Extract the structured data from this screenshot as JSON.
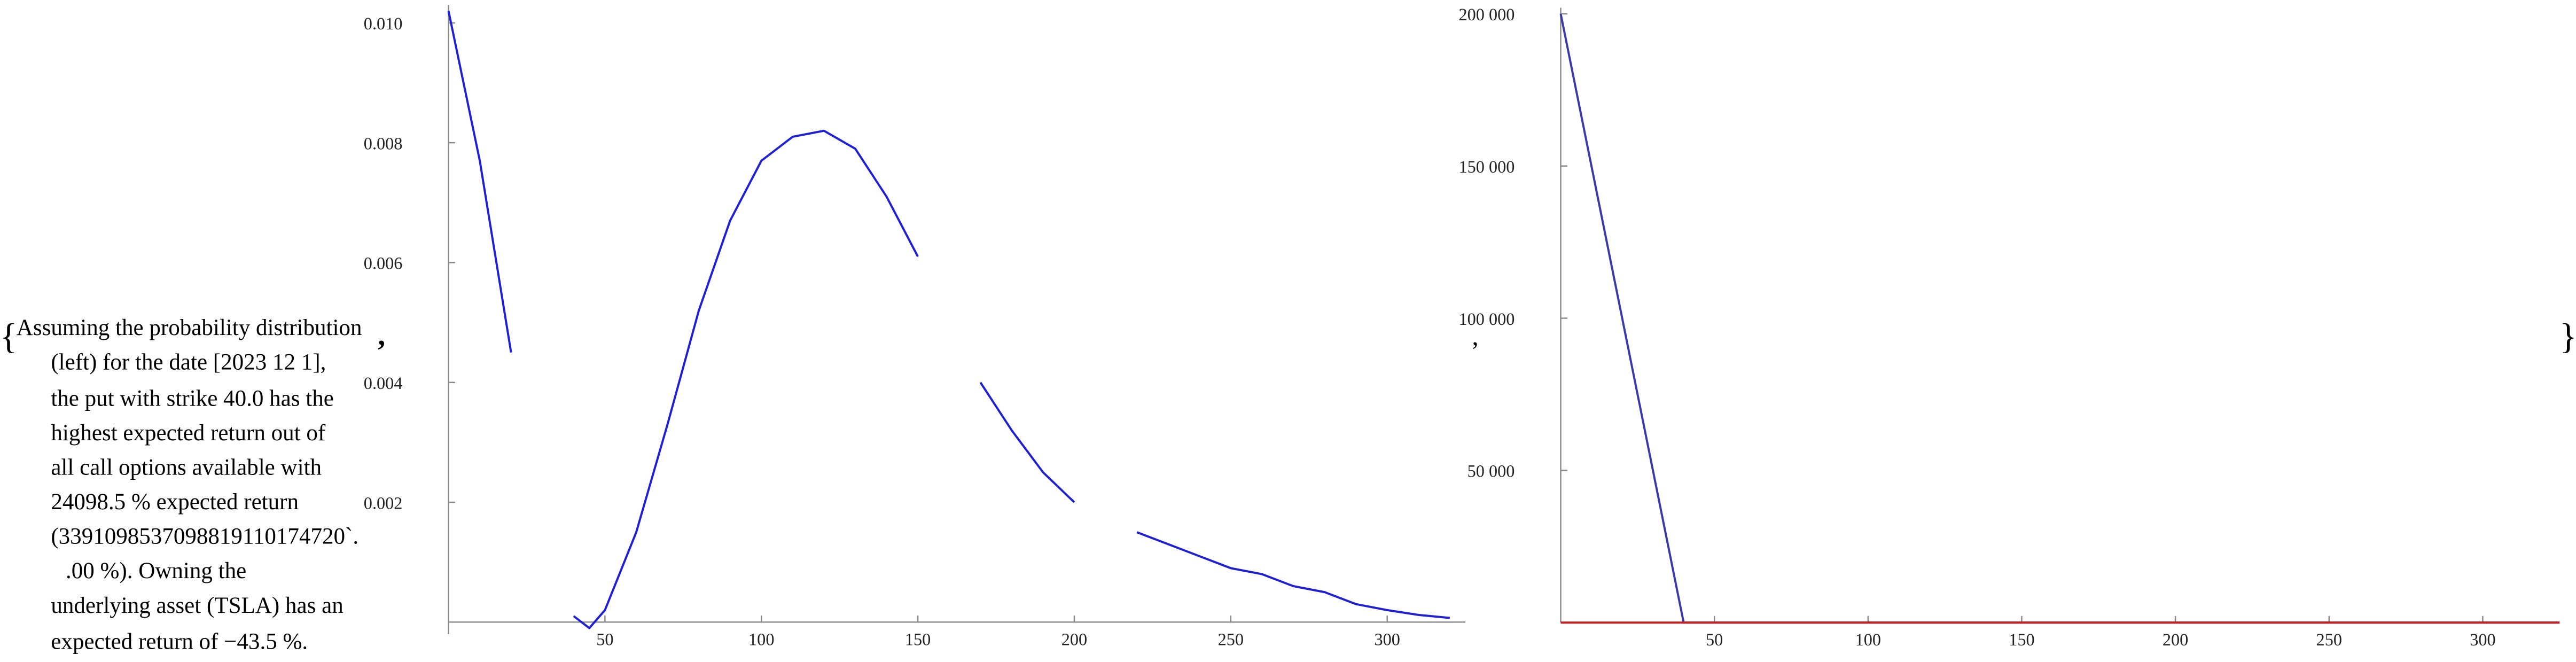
{
  "brackets": {
    "open": "{",
    "close": "}",
    "comma": ",",
    "separator": ","
  },
  "text": [
    "Assuming the probability distribution",
    "(left) for the date [2023 12 1],",
    "the put with strike 40.0 has the",
    "highest expected return out of",
    "all call options available with",
    "24098.5 % expected return",
    "(3391098537098819110174720`.",
    ".00 %). Owning the",
    "underlying asset (TSLA) has an",
    "expected return of −43.5 %."
  ],
  "chart_data": [
    {
      "type": "line",
      "x": [
        0,
        10,
        20,
        30,
        40,
        45,
        50,
        60,
        70,
        80,
        90,
        100,
        110,
        120,
        130,
        140,
        150,
        160,
        170,
        180,
        190,
        200,
        210,
        220,
        230,
        240,
        250,
        260,
        270,
        280,
        290,
        300,
        310,
        320
      ],
      "series": [
        {
          "color": "#1f1fd6",
          "values": [
            0.0102,
            0.0077,
            0.0045,
            null,
            0.0001,
            -0.0001,
            0.0002,
            0.0015,
            0.0033,
            0.0052,
            0.0067,
            0.0077,
            0.0081,
            0.0082,
            0.0079,
            0.0071,
            0.0061,
            null,
            0.004,
            0.0032,
            0.0025,
            0.002,
            null,
            0.0015,
            0.0013,
            0.0011,
            0.0009,
            0.0008,
            0.0006,
            0.0005,
            0.0003,
            0.0002,
            0.00012,
            7e-05
          ]
        }
      ],
      "xlim": [
        0,
        325
      ],
      "ylim": [
        -0.0002,
        0.0103
      ],
      "xticks": [
        50,
        100,
        150,
        200,
        250,
        300
      ],
      "yticks": [
        0.002,
        0.004,
        0.006,
        0.008,
        {
          "value": 0.01,
          "label": "0.010"
        }
      ]
    },
    {
      "type": "line",
      "x": [
        0,
        40,
        325
      ],
      "series": [
        {
          "color": "#3a3aa8",
          "values": [
            200000,
            0,
            0
          ]
        },
        {
          "color": "#c82020",
          "values": [
            0,
            0,
            0
          ]
        }
      ],
      "xlim": [
        0,
        325
      ],
      "ylim": [
        0,
        202000
      ],
      "xticks": [
        50,
        100,
        150,
        200,
        250,
        300
      ],
      "yticks": [
        {
          "value": 50000,
          "label": "50 000"
        },
        {
          "value": 100000,
          "label": "100 000"
        },
        {
          "value": 150000,
          "label": "150 000"
        },
        {
          "value": 200000,
          "label": "200 000"
        }
      ]
    }
  ]
}
